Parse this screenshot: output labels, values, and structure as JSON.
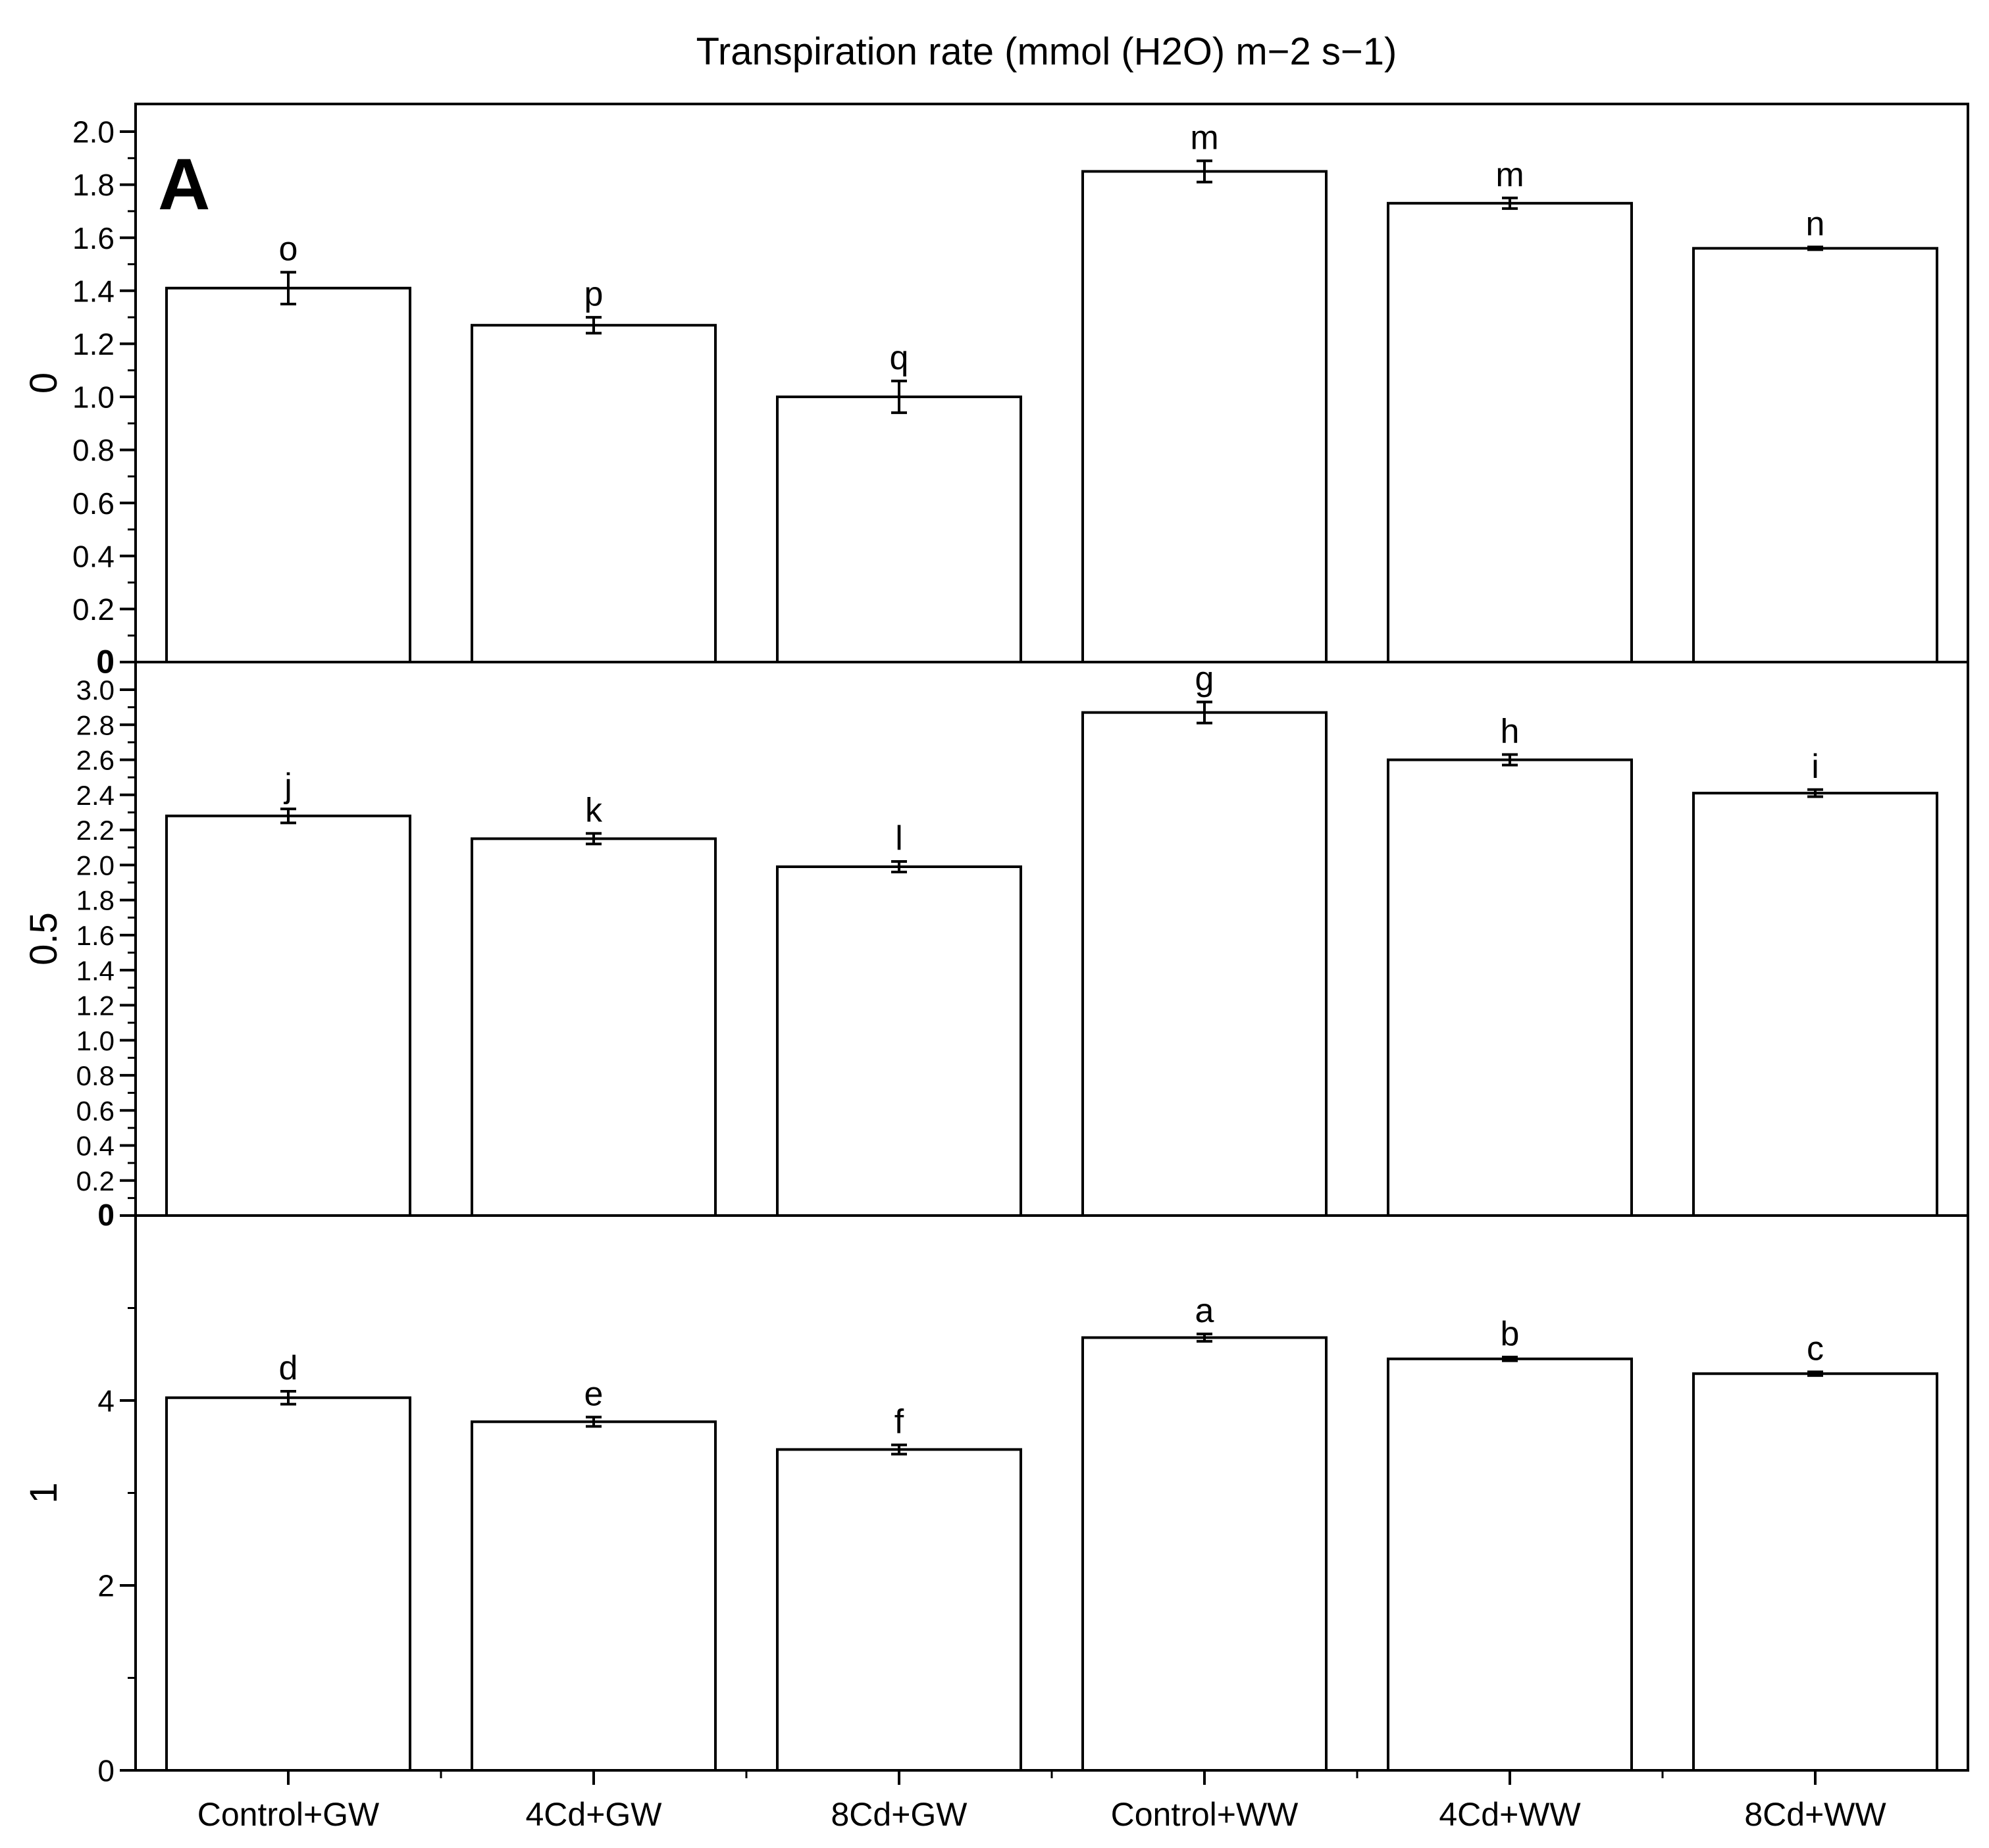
{
  "chart_data": {
    "type": "bar",
    "title": "Transpiration rate (mmol (H2O) m−2 s−1)",
    "panel_label": "A",
    "categories": [
      "Control+GW",
      "4Cd+GW",
      "8Cd+GW",
      "Control+WW",
      "4Cd+WW",
      "8Cd+WW"
    ],
    "grid": false,
    "panels": [
      {
        "ylabel": "0",
        "ylim": [
          0,
          2.0
        ],
        "ticks": [
          "0",
          "0.2",
          "0.4",
          "0.6",
          "0.8",
          "1.0",
          "1.2",
          "1.4",
          "1.6",
          "1.8",
          "2.0"
        ],
        "values": [
          1.41,
          1.27,
          1.0,
          1.85,
          1.73,
          1.56
        ],
        "errors": [
          0.06,
          0.03,
          0.06,
          0.04,
          0.02,
          0.005
        ],
        "letters": [
          "o",
          "p",
          "q",
          "m",
          "m",
          "n"
        ]
      },
      {
        "ylabel": "0.5",
        "ylim": [
          0,
          3.0
        ],
        "ticks": [
          "0",
          "0.2",
          "0.4",
          "0.6",
          "0.8",
          "1.0",
          "1.2",
          "1.4",
          "1.6",
          "1.8",
          "2.0",
          "2.2",
          "2.4",
          "2.6",
          "2.8",
          "3.0"
        ],
        "values": [
          2.28,
          2.15,
          1.99,
          2.87,
          2.6,
          2.41
        ],
        "errors": [
          0.04,
          0.03,
          0.03,
          0.06,
          0.03,
          0.02
        ],
        "letters": [
          "j",
          "k",
          "l",
          "g",
          "h",
          "i"
        ]
      },
      {
        "ylabel": "1",
        "ylim": [
          0,
          6.0
        ],
        "ticks": [
          "0",
          "2",
          "4"
        ],
        "values": [
          4.03,
          3.77,
          3.47,
          4.68,
          4.45,
          4.29
        ],
        "errors": [
          0.07,
          0.05,
          0.05,
          0.04,
          0.02,
          0.02
        ],
        "letters": [
          "d",
          "e",
          "f",
          "a",
          "b",
          "c"
        ]
      }
    ]
  }
}
